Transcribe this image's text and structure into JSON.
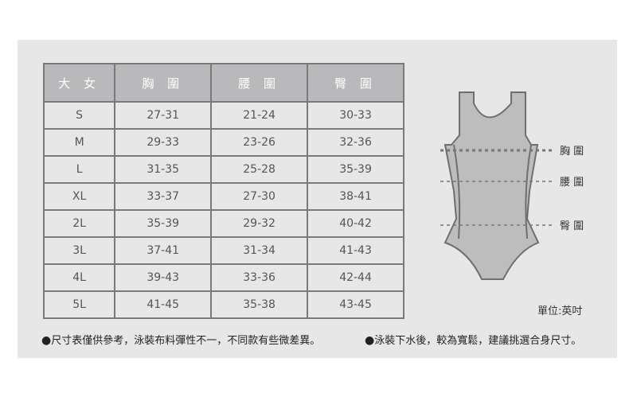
{
  "table": {
    "headers": [
      "大 女",
      "胸 圍",
      "腰 圍",
      "臀 圍"
    ],
    "rows": [
      [
        "S",
        "27-31",
        "21-24",
        "30-33"
      ],
      [
        "M",
        "29-33",
        "23-26",
        "32-36"
      ],
      [
        "L",
        "31-35",
        "25-28",
        "35-39"
      ],
      [
        "XL",
        "33-37",
        "27-30",
        "38-41"
      ],
      [
        "2L",
        "35-39",
        "29-32",
        "40-42"
      ],
      [
        "3L",
        "37-41",
        "31-34",
        "41-43"
      ],
      [
        "4L",
        "39-43",
        "33-36",
        "42-44"
      ],
      [
        "5L",
        "41-45",
        "35-38",
        "43-45"
      ]
    ]
  },
  "diagram": {
    "labels": [
      "胸 圍",
      "腰 圍",
      "臀 圍"
    ],
    "unit": "單位:英吋"
  },
  "notes": [
    "尺寸表僅供參考，泳裝布料彈性不一，不同款有些微差異。",
    "泳裝下水後，較為寬鬆，建議挑選合身尺寸。"
  ],
  "colors": {
    "panel": "#e7e7e7",
    "header": "#b9b9bb",
    "border": "#7a7a7a",
    "garment": "#bdbdbd"
  }
}
